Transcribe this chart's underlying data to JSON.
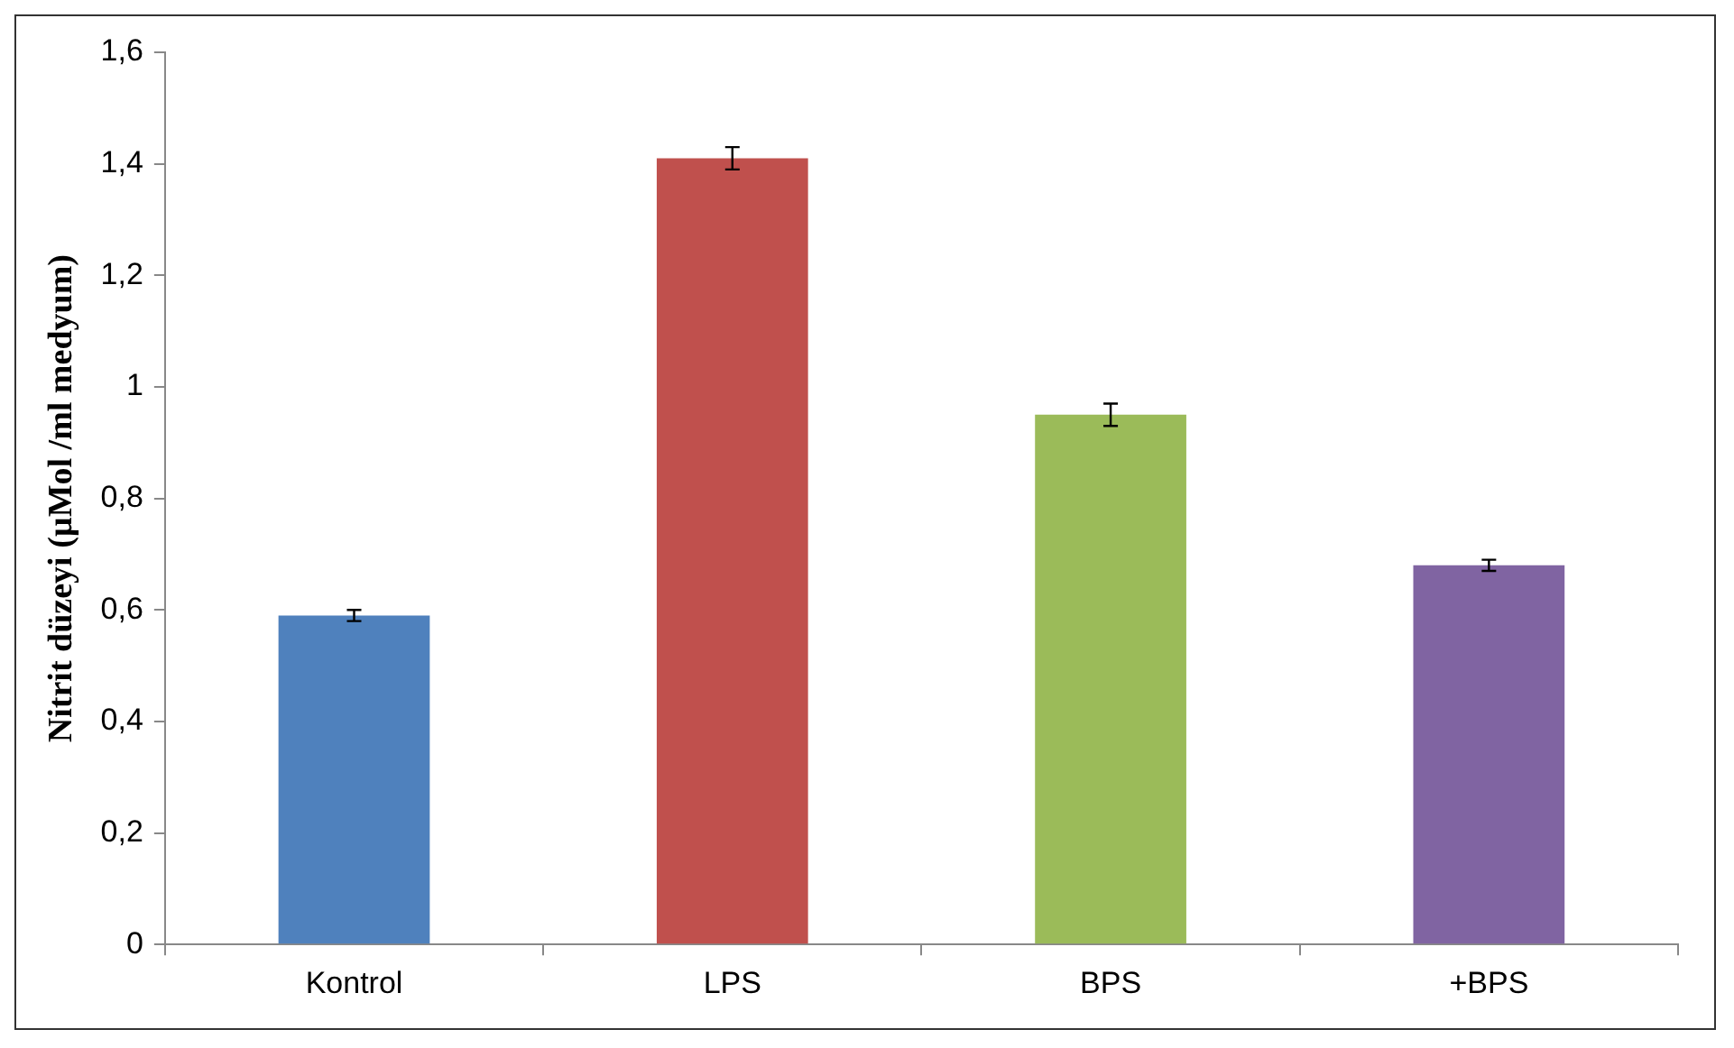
{
  "chart_data": {
    "type": "bar",
    "ylabel": "Nitrit düzeyi (µMol /ml medyum)",
    "categories": [
      "Kontrol",
      "LPS",
      "BPS",
      "+BPS"
    ],
    "values": [
      0.59,
      1.41,
      0.95,
      0.68
    ],
    "colors": [
      "#4f81bd",
      "#c0504d",
      "#9bbb59",
      "#8064a2"
    ],
    "errors": [
      0.01,
      0.02,
      0.02,
      0.01
    ],
    "ylim": [
      0,
      1.6
    ],
    "yticks": [
      0,
      {
        "value": 0.2,
        "label": "0,2"
      },
      {
        "value": 0.4,
        "label": "0,4"
      },
      {
        "value": 0.6,
        "label": "0,6"
      },
      {
        "value": 0.8,
        "label": "0,8"
      },
      1,
      {
        "value": 1.2,
        "label": "1,2"
      },
      {
        "value": 1.4,
        "label": "1,4"
      },
      {
        "value": 1.6,
        "label": "1,6"
      }
    ]
  }
}
